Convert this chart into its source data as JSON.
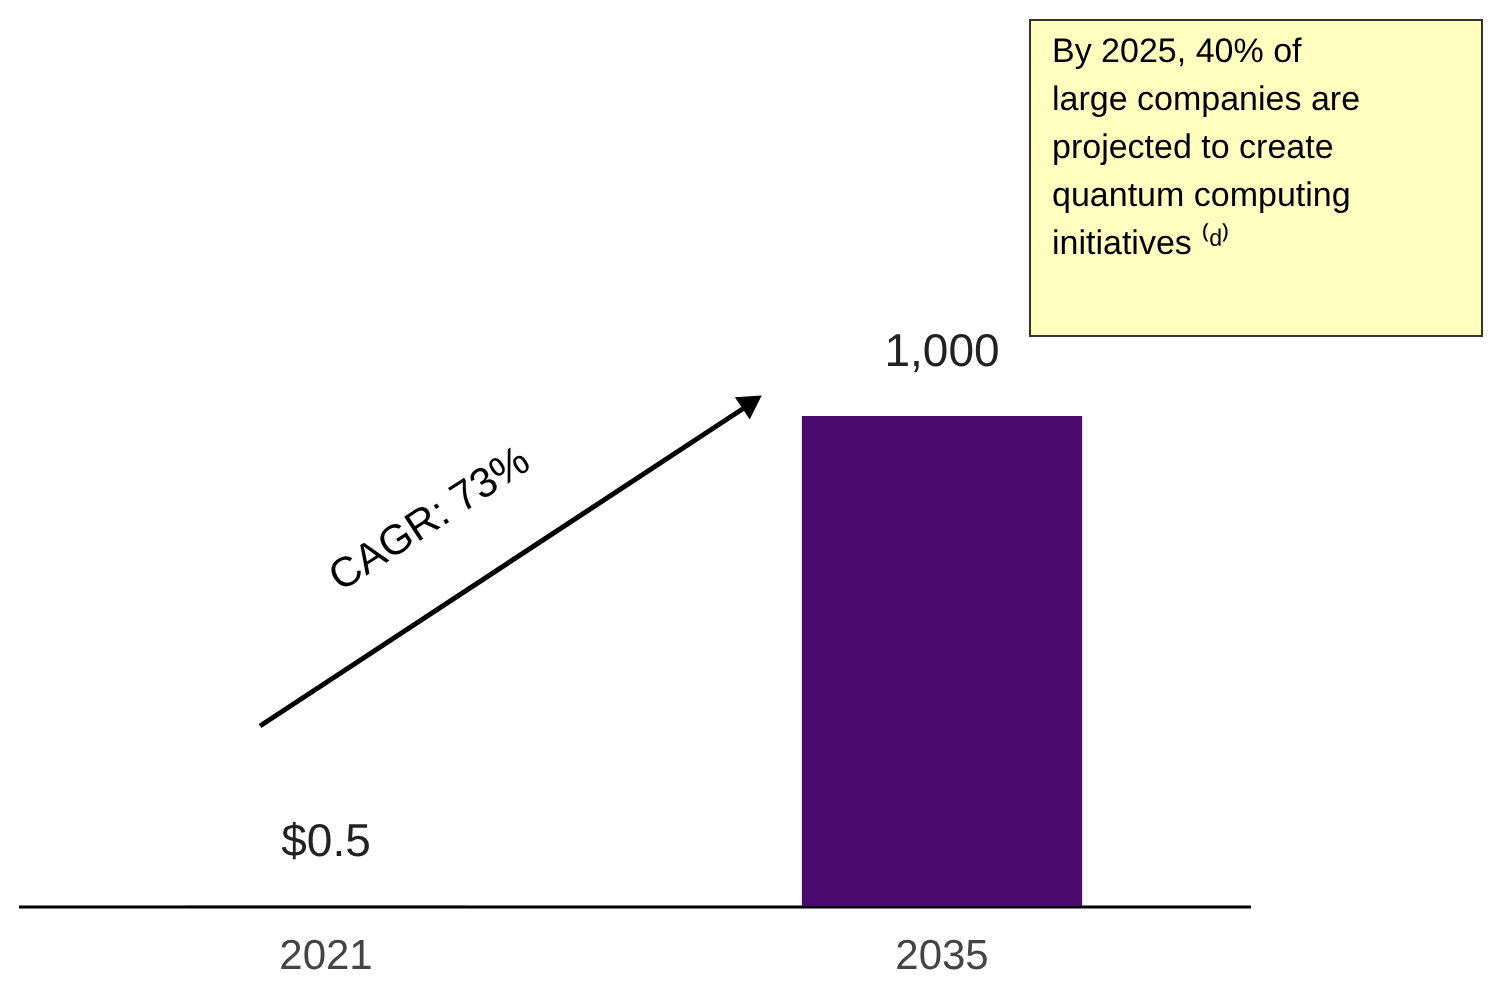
{
  "chart_data": {
    "type": "bar",
    "ylim": [
      0,
      1000
    ],
    "tick_labels": "x",
    "categories": [
      "2021",
      "2035"
    ],
    "values": [
      0.5,
      1000
    ],
    "value_labels": [
      "$0.5",
      "1,000"
    ],
    "color": "#4a0a70",
    "annotations": [
      "CAGR: 73%",
      "By 2025, 40% of\nlarge companies are\nprojected to create\nquantum computing\ninitiatives ⁽ᵈ⁾"
    ]
  }
}
